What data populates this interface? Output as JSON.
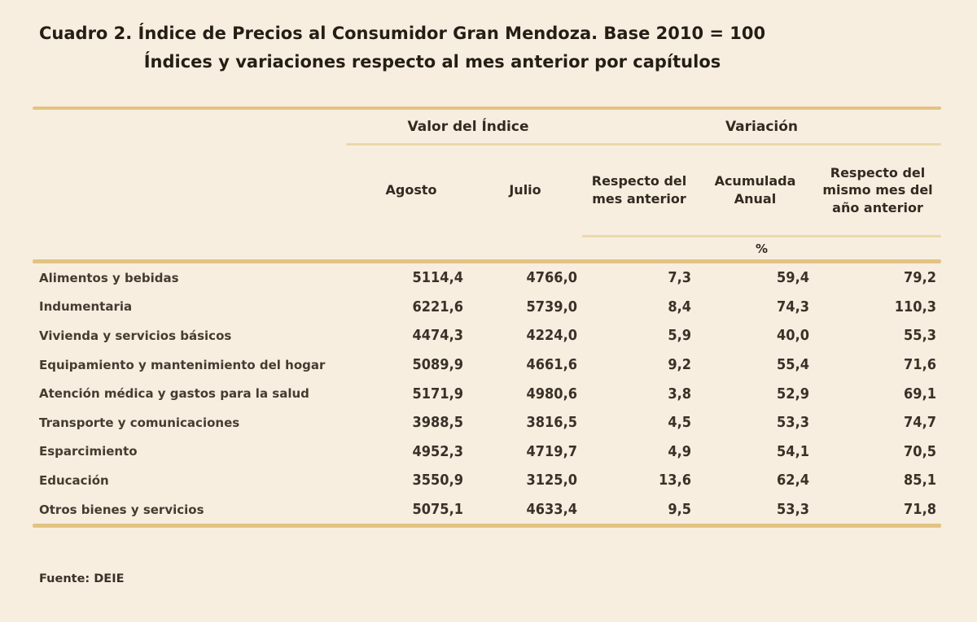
{
  "title": {
    "line1": "Cuadro 2. Índice de Precios al Consumidor Gran Mendoza. Base 2010 = 100",
    "line2": "Índices y variaciones respecto al mes anterior por capítulos"
  },
  "table": {
    "group_headers": {
      "valor": "Valor del Índice",
      "variacion": "Variación"
    },
    "column_headers": {
      "agosto": "Agosto",
      "julio": "Julio",
      "var_mes": "Respecto del mes anterior",
      "var_acumulada": "Acumulada Anual",
      "var_interanual": "Respecto del mismo mes del año anterior"
    },
    "unit_label": "%",
    "rows": [
      {
        "label": "Alimentos y bebidas",
        "agosto": "5114,4",
        "julio": "4766,0",
        "var_mes": "7,3",
        "var_acumulada": "59,4",
        "var_interanual": "79,2"
      },
      {
        "label": "Indumentaria",
        "agosto": "6221,6",
        "julio": "5739,0",
        "var_mes": "8,4",
        "var_acumulada": "74,3",
        "var_interanual": "110,3"
      },
      {
        "label": "Vivienda y servicios básicos",
        "agosto": "4474,3",
        "julio": "4224,0",
        "var_mes": "5,9",
        "var_acumulada": "40,0",
        "var_interanual": "55,3"
      },
      {
        "label": "Equipamiento y mantenimiento del hogar",
        "agosto": "5089,9",
        "julio": "4661,6",
        "var_mes": "9,2",
        "var_acumulada": "55,4",
        "var_interanual": "71,6"
      },
      {
        "label": "Atención médica y gastos para la salud",
        "agosto": "5171,9",
        "julio": "4980,6",
        "var_mes": "3,8",
        "var_acumulada": "52,9",
        "var_interanual": "69,1"
      },
      {
        "label": "Transporte y comunicaciones",
        "agosto": "3988,5",
        "julio": "3816,5",
        "var_mes": "4,5",
        "var_acumulada": "53,3",
        "var_interanual": "74,7"
      },
      {
        "label": "Esparcimiento",
        "agosto": "4952,3",
        "julio": "4719,7",
        "var_mes": "4,9",
        "var_acumulada": "54,1",
        "var_interanual": "70,5"
      },
      {
        "label": "Educación",
        "agosto": "3550,9",
        "julio": "3125,0",
        "var_mes": "13,6",
        "var_acumulada": "62,4",
        "var_interanual": "85,1"
      },
      {
        "label": "Otros bienes y servicios",
        "agosto": "5075,1",
        "julio": "4633,4",
        "var_mes": "9,5",
        "var_acumulada": "53,3",
        "var_interanual": "71,8"
      }
    ]
  },
  "footer": {
    "source": "Fuente: DEIE"
  },
  "colors": {
    "background": "#f8eee0",
    "rule_heavy": "#e2c382",
    "rule_thin": "#ecd8a8",
    "text": "#3a3128"
  }
}
